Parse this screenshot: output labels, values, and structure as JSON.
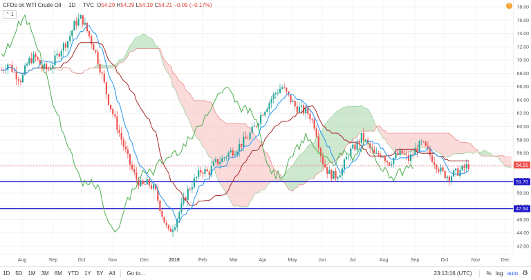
{
  "legend": {
    "symbol": "CFDs on WTI Crude Oil",
    "interval": "1D",
    "exchange": "TVC",
    "open_label": "O",
    "open": "54.29",
    "high_label": "H",
    "high": "54.29",
    "low_label": "L",
    "low": "54.19",
    "close_label": "C",
    "close": "54.21",
    "change": "−0.09 (−0.17%)"
  },
  "collapse": {
    "count": "1",
    "icon": "chevron-up-icon"
  },
  "alert_badge": "!",
  "y_ticks": [
    "78.00",
    "76.00",
    "74.00",
    "72.00",
    "70.00",
    "68.00",
    "66.00",
    "64.00",
    "62.00",
    "60.00",
    "58.00",
    "56.00",
    "54.00",
    "52.00",
    "50.00",
    "48.00",
    "46.00",
    "44.00",
    "42.00"
  ],
  "x_ticks": [
    "Aug",
    "Sep",
    "Oct",
    "Nov",
    "Dec",
    "2019",
    "Feb",
    "Mar",
    "Apr",
    "May",
    "Jun",
    "Jul",
    "Aug",
    "Sep",
    "Oct",
    "Nov",
    "Dec"
  ],
  "price_tags": [
    {
      "id": "last-price-tag",
      "value": "54.21",
      "color": "#ef5350"
    },
    {
      "id": "support-tag-1",
      "value": "51.70",
      "color": "#1e18c8"
    },
    {
      "id": "support-tag-2",
      "value": "47.64",
      "color": "#1e18c8"
    }
  ],
  "hlines": [
    {
      "price": 51.7,
      "color": "#1e18c8"
    },
    {
      "price": 47.64,
      "color": "#1e18c8"
    }
  ],
  "colors": {
    "up": "#26a69a",
    "down": "#ef5350",
    "tenkan": "#2196f3",
    "kijun": "#a52a2a",
    "chikou": "#4caf50",
    "cloud_bull": "#a5d6a7",
    "cloud_bear": "#f8bbbb"
  },
  "bottom": {
    "ranges": [
      "1D",
      "5D",
      "1M",
      "3M",
      "6M",
      "YTD",
      "1Y",
      "5Y",
      "All"
    ],
    "goto": "Go to...",
    "time": "23:13:16 (UTC)",
    "percent": "%",
    "log": "log",
    "auto": "auto"
  },
  "chart_data": {
    "type": "candlestick",
    "title": "",
    "ylim": [
      41,
      79
    ],
    "overlay": "Ichimoku Cloud",
    "x": [
      "2018-08",
      "2018-09",
      "2018-10",
      "2018-11",
      "2018-12",
      "2019-01",
      "2019-02",
      "2019-03",
      "2019-04",
      "2019-05",
      "2019-06",
      "2019-07",
      "2019-08",
      "2019-09",
      "2019-10"
    ],
    "close_path": [
      68.5,
      69.5,
      68.0,
      67.0,
      69.8,
      70.5,
      69.0,
      68.5,
      70.0,
      71.8,
      73.0,
      75.5,
      76.4,
      74.0,
      71.5,
      68.0,
      64.0,
      61.0,
      58.0,
      55.0,
      52.5,
      51.0,
      51.5,
      50.5,
      47.0,
      44.0,
      45.5,
      48.0,
      50.5,
      52.0,
      53.5,
      53.0,
      54.5,
      55.0,
      56.0,
      56.5,
      57.5,
      58.5,
      60.0,
      62.0,
      63.5,
      65.0,
      66.0,
      64.5,
      63.0,
      62.5,
      62.0,
      60.0,
      55.0,
      53.0,
      52.5,
      53.5,
      56.0,
      57.0,
      58.5,
      57.0,
      55.5,
      56.0,
      54.5,
      55.5,
      56.0,
      55.0,
      56.5,
      57.5,
      56.0,
      54.5,
      53.0,
      52.5,
      53.0,
      53.5,
      54.2
    ],
    "last": 54.21,
    "support_levels": [
      51.7,
      47.64
    ]
  }
}
